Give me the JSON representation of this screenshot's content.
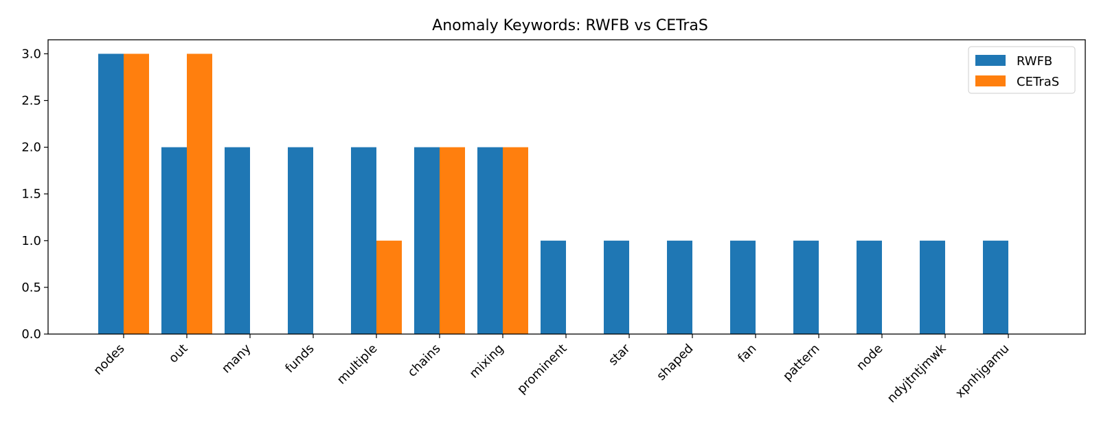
{
  "chart_data": {
    "type": "bar",
    "title": "Anomaly Keywords: RWFB vs CETraS",
    "xlabel": "",
    "ylabel": "",
    "categories": [
      "nodes",
      "out",
      "many",
      "funds",
      "multiple",
      "chains",
      "mixing",
      "prominent",
      "star",
      "shaped",
      "fan",
      "pattern",
      "node",
      "ndyjtntjmwk",
      "xpnhjgamu"
    ],
    "series": [
      {
        "name": "RWFB",
        "color": "#1f77b4",
        "values": [
          3,
          2,
          2,
          2,
          2,
          2,
          2,
          1,
          1,
          1,
          1,
          1,
          1,
          1,
          1
        ]
      },
      {
        "name": "CETraS",
        "color": "#ff7f0e",
        "values": [
          3,
          3,
          0,
          0,
          1,
          2,
          2,
          0,
          0,
          0,
          0,
          0,
          0,
          0,
          0
        ]
      }
    ],
    "ylim": [
      0,
      3.15
    ],
    "yticks": [
      "0.0",
      "0.5",
      "1.0",
      "1.5",
      "2.0",
      "2.5",
      "3.0"
    ],
    "legend_position": "top-right",
    "grid": false
  }
}
